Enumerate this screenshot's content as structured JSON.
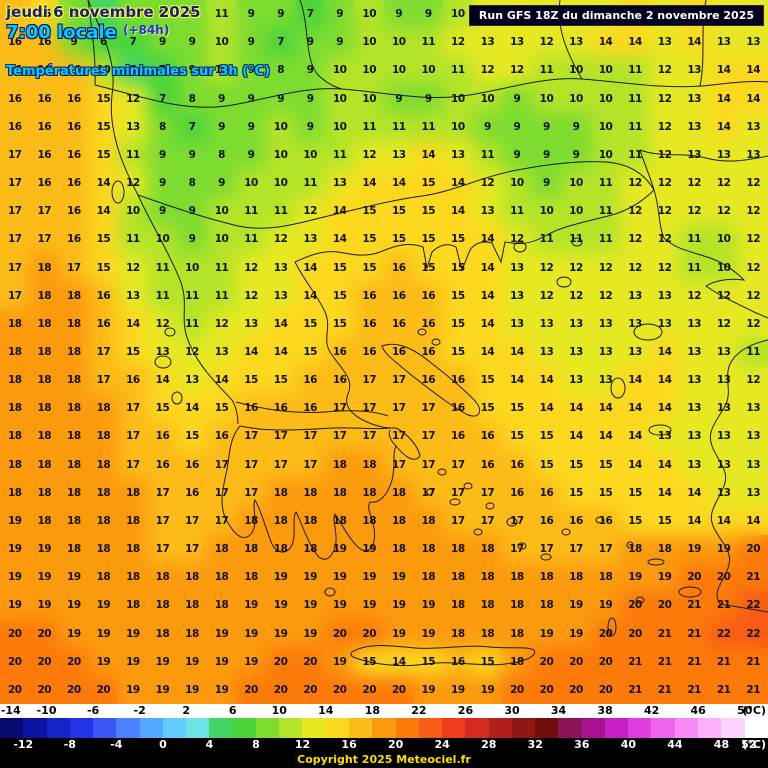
{
  "header": {
    "date_line": "jeudi 6 novembre 2025",
    "time_line": "7:00 locale",
    "forecast_offset": "(+84h)",
    "subtitle": "Températures minimales sur 3h (°C)",
    "run_info": "Run GFS 18Z du dimanche 2 novembre 2025"
  },
  "footer": {
    "copyright": "Copyright 2025 Meteociel.fr"
  },
  "ui_colors": {
    "date_text": "#181890",
    "time_text": "#00ccff",
    "subtitle_text": "#00d2ff",
    "run_box_bg": "#00001e",
    "copyright_text": "#ffdf00"
  },
  "scale": {
    "min": -14,
    "max": 52,
    "step": 2,
    "unit": "(°C)",
    "top_labels": [
      "-14",
      "-10",
      "-6",
      "-2",
      "2",
      "6",
      "10",
      "14",
      "18",
      "22",
      "26",
      "30",
      "34",
      "38",
      "42",
      "46",
      "50"
    ],
    "bottom_labels": [
      "-12",
      "-8",
      "-4",
      "0",
      "4",
      "8",
      "12",
      "16",
      "20",
      "24",
      "28",
      "32",
      "36",
      "40",
      "44",
      "48",
      "52"
    ],
    "colors": [
      "#050a6e",
      "#0a14a0",
      "#1424c8",
      "#2334e8",
      "#3a55f8",
      "#4b80ff",
      "#55a8ff",
      "#62ccff",
      "#6ce4e4",
      "#44d464",
      "#49d43c",
      "#7ddc30",
      "#b4e428",
      "#e6e922",
      "#fcd81f",
      "#fcbb17",
      "#fc9a0e",
      "#fc7a0a",
      "#f85c14",
      "#f03c1e",
      "#d42a1f",
      "#b01f1a",
      "#8f1712",
      "#70100c",
      "#8c1458",
      "#a8128f",
      "#c81ec8",
      "#e03ee0",
      "#ef64ef",
      "#f78cf7",
      "#fbb0fb",
      "#fdd3fd",
      "#ffffff"
    ]
  },
  "chart_data": {
    "type": "heatmap",
    "title": "Températures minimales sur 3h (°C)",
    "model": "GFS",
    "cols": 26,
    "rows": 25,
    "temps": [
      [
        16,
        15,
        8,
        5,
        8,
        9,
        9,
        11,
        9,
        9,
        7,
        9,
        10,
        9,
        9,
        10,
        12,
        13,
        13,
        12,
        13,
        14,
        13,
        14,
        13,
        13
      ],
      [
        16,
        16,
        9,
        6,
        7,
        9,
        9,
        10,
        9,
        7,
        9,
        9,
        10,
        10,
        11,
        12,
        13,
        13,
        12,
        13,
        14,
        14,
        13,
        14,
        13,
        13
      ],
      [
        16,
        16,
        16,
        10,
        5,
        7,
        9,
        10,
        9,
        8,
        9,
        10,
        10,
        10,
        10,
        11,
        12,
        12,
        11,
        10,
        10,
        11,
        12,
        13,
        14,
        14
      ],
      [
        16,
        16,
        16,
        15,
        12,
        7,
        8,
        9,
        9,
        9,
        9,
        10,
        10,
        9,
        9,
        10,
        10,
        9,
        10,
        10,
        10,
        11,
        12,
        13,
        14,
        14
      ],
      [
        16,
        16,
        16,
        15,
        13,
        8,
        7,
        9,
        9,
        10,
        9,
        10,
        11,
        11,
        11,
        10,
        9,
        9,
        9,
        9,
        10,
        11,
        12,
        13,
        14,
        13
      ],
      [
        17,
        16,
        16,
        15,
        11,
        9,
        9,
        8,
        9,
        10,
        10,
        11,
        12,
        13,
        14,
        13,
        11,
        9,
        9,
        9,
        10,
        11,
        12,
        13,
        13,
        13
      ],
      [
        17,
        16,
        16,
        14,
        12,
        9,
        8,
        9,
        10,
        10,
        11,
        13,
        14,
        14,
        15,
        14,
        12,
        10,
        9,
        10,
        11,
        12,
        12,
        12,
        12,
        12
      ],
      [
        17,
        17,
        16,
        14,
        10,
        9,
        9,
        10,
        11,
        11,
        12,
        14,
        15,
        15,
        15,
        14,
        13,
        11,
        10,
        10,
        11,
        12,
        12,
        12,
        12,
        12
      ],
      [
        17,
        17,
        16,
        15,
        11,
        10,
        9,
        10,
        11,
        12,
        13,
        14,
        15,
        15,
        15,
        15,
        14,
        12,
        11,
        11,
        11,
        12,
        12,
        11,
        10,
        12
      ],
      [
        17,
        18,
        17,
        15,
        12,
        11,
        10,
        11,
        12,
        13,
        14,
        15,
        15,
        16,
        15,
        15,
        14,
        13,
        12,
        12,
        12,
        12,
        12,
        11,
        10,
        12
      ],
      [
        17,
        18,
        18,
        16,
        13,
        11,
        11,
        11,
        12,
        13,
        14,
        15,
        16,
        16,
        16,
        15,
        14,
        13,
        12,
        12,
        12,
        13,
        13,
        12,
        12,
        12
      ],
      [
        18,
        18,
        18,
        16,
        14,
        12,
        11,
        12,
        13,
        14,
        15,
        15,
        16,
        16,
        16,
        15,
        14,
        13,
        13,
        13,
        13,
        13,
        13,
        13,
        12,
        12
      ],
      [
        18,
        18,
        18,
        17,
        15,
        13,
        12,
        13,
        14,
        14,
        15,
        16,
        16,
        16,
        16,
        15,
        14,
        14,
        13,
        13,
        13,
        13,
        14,
        13,
        13,
        11
      ],
      [
        18,
        18,
        18,
        17,
        16,
        14,
        13,
        14,
        15,
        15,
        16,
        16,
        17,
        17,
        16,
        16,
        15,
        14,
        14,
        13,
        13,
        14,
        14,
        13,
        13,
        12
      ],
      [
        18,
        18,
        18,
        18,
        17,
        15,
        14,
        15,
        16,
        16,
        16,
        17,
        17,
        17,
        17,
        16,
        15,
        15,
        14,
        14,
        14,
        14,
        14,
        13,
        13,
        13
      ],
      [
        18,
        18,
        18,
        18,
        17,
        16,
        15,
        16,
        17,
        17,
        17,
        17,
        17,
        17,
        17,
        16,
        16,
        15,
        15,
        14,
        14,
        14,
        13,
        13,
        13,
        13
      ],
      [
        18,
        18,
        18,
        18,
        17,
        16,
        16,
        17,
        17,
        17,
        17,
        18,
        18,
        17,
        17,
        17,
        16,
        16,
        15,
        15,
        15,
        14,
        14,
        13,
        13,
        13
      ],
      [
        18,
        18,
        18,
        18,
        18,
        17,
        16,
        17,
        17,
        18,
        18,
        18,
        18,
        18,
        17,
        17,
        17,
        16,
        16,
        15,
        15,
        15,
        14,
        14,
        13,
        13
      ],
      [
        19,
        18,
        18,
        18,
        18,
        17,
        17,
        17,
        18,
        18,
        18,
        18,
        18,
        18,
        18,
        17,
        17,
        17,
        16,
        16,
        16,
        15,
        15,
        14,
        14,
        14
      ],
      [
        19,
        19,
        18,
        18,
        18,
        17,
        17,
        18,
        18,
        18,
        18,
        19,
        19,
        18,
        18,
        18,
        18,
        17,
        17,
        17,
        17,
        18,
        18,
        19,
        19,
        20
      ],
      [
        19,
        19,
        19,
        18,
        18,
        18,
        18,
        18,
        18,
        19,
        19,
        19,
        19,
        19,
        18,
        18,
        18,
        18,
        18,
        18,
        18,
        19,
        19,
        20,
        20,
        21
      ],
      [
        19,
        19,
        19,
        19,
        18,
        18,
        18,
        18,
        19,
        19,
        19,
        19,
        19,
        19,
        19,
        18,
        18,
        18,
        18,
        19,
        19,
        20,
        20,
        21,
        21,
        22
      ],
      [
        20,
        20,
        19,
        19,
        19,
        18,
        18,
        19,
        19,
        19,
        19,
        20,
        20,
        19,
        19,
        18,
        18,
        18,
        19,
        19,
        20,
        20,
        21,
        21,
        22,
        22
      ],
      [
        20,
        20,
        20,
        19,
        19,
        19,
        19,
        19,
        19,
        20,
        20,
        19,
        15,
        14,
        15,
        16,
        15,
        18,
        20,
        20,
        20,
        21,
        21,
        21,
        21,
        21
      ],
      [
        20,
        20,
        20,
        20,
        19,
        19,
        19,
        19,
        20,
        20,
        20,
        20,
        20,
        20,
        19,
        19,
        19,
        20,
        20,
        20,
        20,
        21,
        21,
        21,
        21,
        21
      ]
    ]
  }
}
